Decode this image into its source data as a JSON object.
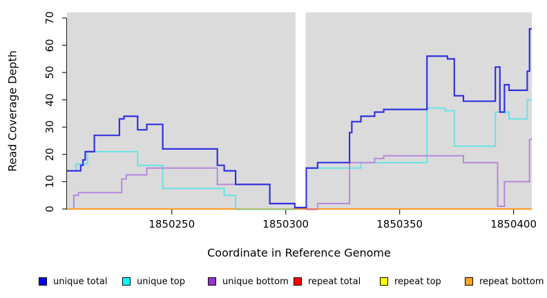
{
  "chart_data": {
    "type": "line",
    "subtype": "step-after-coverage-plot",
    "title": "",
    "xlabel": "Coordinate in Reference Genome",
    "ylabel": "Read Coverage Depth",
    "xlim": [
      1850204,
      1850408
    ],
    "ylim": [
      0,
      70
    ],
    "x_ticks": [
      1850250,
      1850300,
      1850350,
      1850400
    ],
    "y_ticks": [
      0,
      10,
      20,
      30,
      40,
      50,
      60,
      70
    ],
    "grid": "off",
    "panel_bg": "#DBDBDB",
    "axis_color": "#1a1a1a",
    "gap_region": [
      1850304,
      1850309
    ],
    "legend_position": "bottom",
    "series": [
      {
        "name": "unique total",
        "color": "#3030E0",
        "legend_fill": "#0000E8",
        "steps": [
          [
            1850204,
            14
          ],
          [
            1850210,
            16
          ],
          [
            1850211,
            18
          ],
          [
            1850212,
            21
          ],
          [
            1850216,
            27
          ],
          [
            1850227,
            33
          ],
          [
            1850229,
            34
          ],
          [
            1850235,
            29
          ],
          [
            1850239,
            31
          ],
          [
            1850246,
            22
          ],
          [
            1850270,
            16
          ],
          [
            1850273,
            14
          ],
          [
            1850278,
            9
          ],
          [
            1850293,
            2
          ],
          [
            1850304,
            0.5
          ],
          [
            1850309,
            15
          ],
          [
            1850314,
            17
          ],
          [
            1850328,
            28
          ],
          [
            1850329,
            32
          ],
          [
            1850333,
            34
          ],
          [
            1850339,
            35.5
          ],
          [
            1850343,
            36.5
          ],
          [
            1850362,
            56
          ],
          [
            1850371,
            55
          ],
          [
            1850374,
            41.5
          ],
          [
            1850378,
            39.5
          ],
          [
            1850392,
            52
          ],
          [
            1850394,
            35.5
          ],
          [
            1850396,
            45.5
          ],
          [
            1850398,
            43.5
          ],
          [
            1850406,
            50.5
          ],
          [
            1850407,
            66
          ]
        ]
      },
      {
        "name": "unique top",
        "color": "#66E2E6",
        "legend_fill": "#00FFFF",
        "steps": [
          [
            1850204,
            14
          ],
          [
            1850208,
            16.5
          ],
          [
            1850213,
            21
          ],
          [
            1850235,
            16
          ],
          [
            1850246,
            7.5
          ],
          [
            1850273,
            5
          ],
          [
            1850278,
            0
          ],
          [
            1850309,
            15
          ],
          [
            1850333,
            17
          ],
          [
            1850362,
            37
          ],
          [
            1850370,
            36
          ],
          [
            1850374,
            23
          ],
          [
            1850392,
            35.5
          ],
          [
            1850398,
            33
          ],
          [
            1850406,
            40
          ]
        ]
      },
      {
        "name": "unique bottom",
        "color": "#B687DE",
        "legend_fill": "#9933CC",
        "steps": [
          [
            1850204,
            0
          ],
          [
            1850207,
            5
          ],
          [
            1850209,
            6
          ],
          [
            1850228,
            11
          ],
          [
            1850230,
            12.5
          ],
          [
            1850239,
            15
          ],
          [
            1850270,
            9
          ],
          [
            1850293,
            2
          ],
          [
            1850304,
            0
          ],
          [
            1850314,
            2
          ],
          [
            1850328,
            17
          ],
          [
            1850339,
            18.5
          ],
          [
            1850343,
            19.5
          ],
          [
            1850378,
            17
          ],
          [
            1850393,
            1
          ],
          [
            1850396,
            10
          ],
          [
            1850407,
            25.5
          ]
        ]
      },
      {
        "name": "repeat total",
        "color": "#FF0000",
        "legend_fill": "#FF0000",
        "steps": [
          [
            1850204,
            0
          ]
        ]
      },
      {
        "name": "repeat top",
        "color": "#FFFF00",
        "legend_fill": "#FFFF00",
        "steps": [
          [
            1850204,
            0
          ]
        ]
      },
      {
        "name": "repeat bottom",
        "color": "#FF9C1E",
        "legend_fill": "#FFA51E",
        "steps": [
          [
            1850204,
            0
          ]
        ]
      }
    ],
    "baseline_overlays": [
      {
        "from": 1850278,
        "to": 1850304,
        "color": "#8CC98C"
      },
      {
        "from": 1850309,
        "to": 1850314,
        "color": "#E0608C"
      }
    ]
  }
}
